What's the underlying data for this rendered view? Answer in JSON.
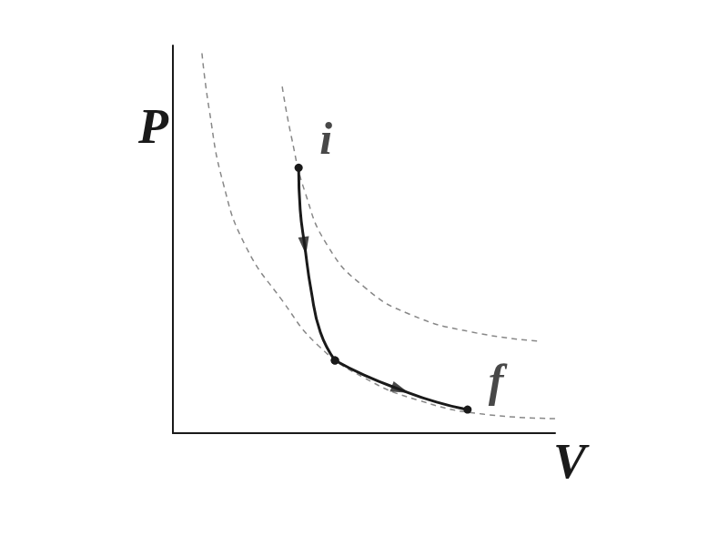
{
  "chart_data": {
    "type": "line",
    "x_label": "V",
    "y_label": "P",
    "xlim": [
      0,
      10
    ],
    "ylim": [
      0,
      13
    ],
    "tick_labels": false,
    "grid": false,
    "series": [
      {
        "line_style": "dashed",
        "color": "#888888",
        "x": [
          0.76,
          0.95,
          1.31,
          1.9,
          2.86,
          3.81,
          5.0,
          6.43,
          8.1,
          10
        ],
        "values": [
          12.74,
          10.85,
          8.41,
          6.28,
          4.45,
          2.93,
          1.86,
          1.1,
          0.64,
          0.49
        ]
      },
      {
        "line_style": "dashed",
        "color": "#888888",
        "x": [
          2.86,
          3.1,
          3.45,
          4.05,
          5.0,
          6.19,
          7.86,
          9.64
        ],
        "values": [
          11.62,
          9.94,
          8.11,
          6.28,
          4.91,
          3.99,
          3.38,
          3.08
        ]
      },
      {
        "line_style": "solid",
        "color": "#1a1a1a",
        "marker": "arrow",
        "x": [
          3.29,
          3.33,
          3.45,
          3.62,
          3.86,
          4.24
        ],
        "values": [
          8.9,
          7.5,
          6.28,
          4.76,
          3.38,
          2.44
        ]
      },
      {
        "line_style": "solid",
        "color": "#1a1a1a",
        "marker": "arrow",
        "x": [
          4.24,
          5.0,
          5.95,
          6.9,
          7.71
        ],
        "values": [
          2.44,
          1.95,
          1.46,
          1.04,
          0.79
        ]
      }
    ],
    "annotations": [
      {
        "text": "i",
        "x": 3.29,
        "y": 8.9
      },
      {
        "text": "f",
        "x": 7.71,
        "y": 0.79
      }
    ]
  }
}
